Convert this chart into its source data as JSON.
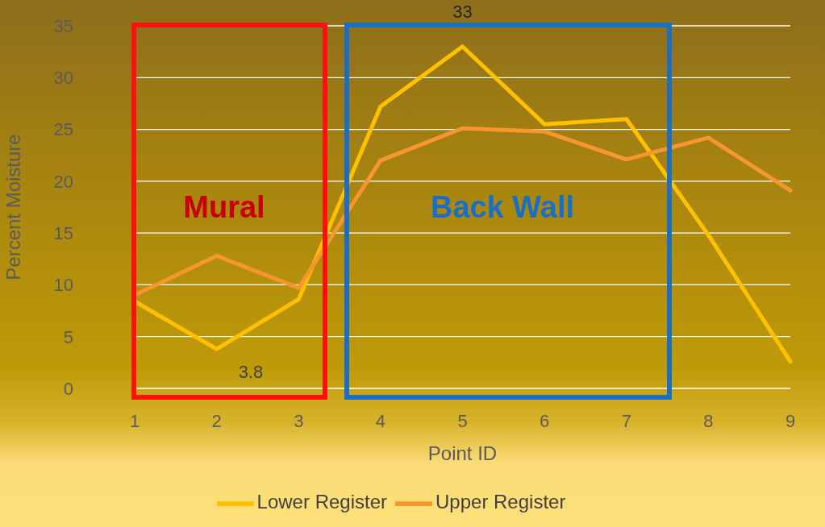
{
  "chart_data": {
    "type": "line",
    "xlabel": "Point ID",
    "ylabel": "Percent Moisture",
    "categories": [
      "1",
      "2",
      "3",
      "4",
      "5",
      "6",
      "7",
      "8",
      "9"
    ],
    "series": [
      {
        "name": "Lower Register",
        "color": "#ffc000",
        "values": [
          8.4,
          3.8,
          8.6,
          27.2,
          33,
          25.5,
          26,
          14.8,
          2.6
        ],
        "value_labels": [
          null,
          "3.8",
          null,
          null,
          "33",
          null,
          null,
          null,
          null
        ]
      },
      {
        "name": "Upper Register",
        "color": "#f7962e",
        "values": [
          9.0,
          12.8,
          9.7,
          22,
          25.1,
          24.8,
          22.1,
          24.2,
          19.1
        ]
      }
    ],
    "ylim": [
      0,
      35
    ],
    "yticks": [
      0,
      5,
      10,
      15,
      20,
      25,
      30,
      35
    ],
    "grid": "y",
    "legend": "bottom",
    "marker": "none",
    "line_style": "solid",
    "annotations": [
      "Mural",
      "Back Wall"
    ]
  }
}
